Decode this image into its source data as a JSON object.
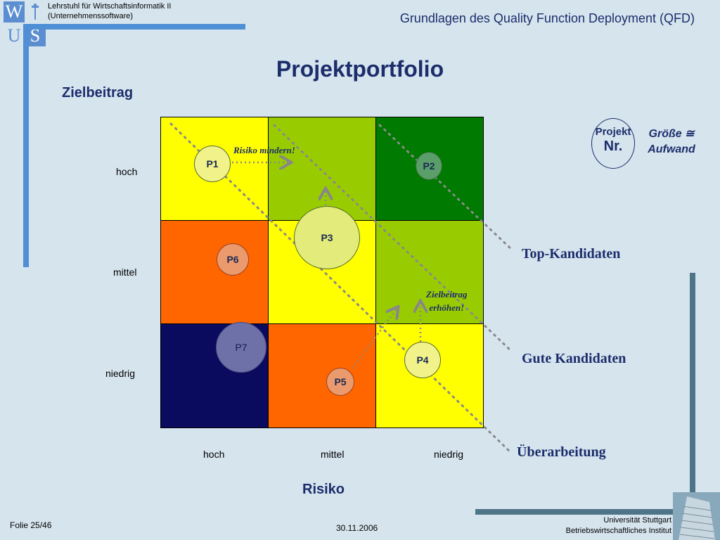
{
  "header": {
    "logo": [
      "W",
      "U",
      "S"
    ],
    "institution_line1": "Lehrstuhl für Wirtschaftsinformatik II",
    "institution_line2": "(Unternehmenssoftware)",
    "course_title": "Grundlagen des Quality Function Deployment (QFD)"
  },
  "slide": {
    "title": "Projektportfolio",
    "y_axis_label": "Zielbeitrag",
    "x_axis_label": "Risiko",
    "y_ticks": [
      "hoch",
      "mittel",
      "niedrig"
    ],
    "x_ticks": [
      "hoch",
      "mittel",
      "niedrig"
    ]
  },
  "legend": {
    "circle_line1": "Projekt",
    "circle_line2": "Nr.",
    "text_line1": "Größe ≅",
    "text_line2": "Aufwand"
  },
  "grid_colors": [
    [
      "#ffff00",
      "#99cc00",
      "#007a00"
    ],
    [
      "#ff6600",
      "#ffff00",
      "#99cc00"
    ],
    [
      "#0a0a5e",
      "#ff6600",
      "#ffff00"
    ]
  ],
  "projects": [
    "P1",
    "P2",
    "P3",
    "P4",
    "P5",
    "P6",
    "P7"
  ],
  "annotations": {
    "risk": "Risiko mindern!",
    "goal_line1": "Zielbeitrag",
    "goal_line2": "erhöhen!"
  },
  "candidates": {
    "top": "Top-Kandidaten",
    "good": "Gute Kandidaten",
    "rework": "Überarbeitung"
  },
  "footer": {
    "slide_no": "Folie 25/46",
    "date": "30.11.2006",
    "uni_line1": "Universität Stuttgart",
    "uni_line2": "Betriebswirtschaftliches Institut"
  }
}
